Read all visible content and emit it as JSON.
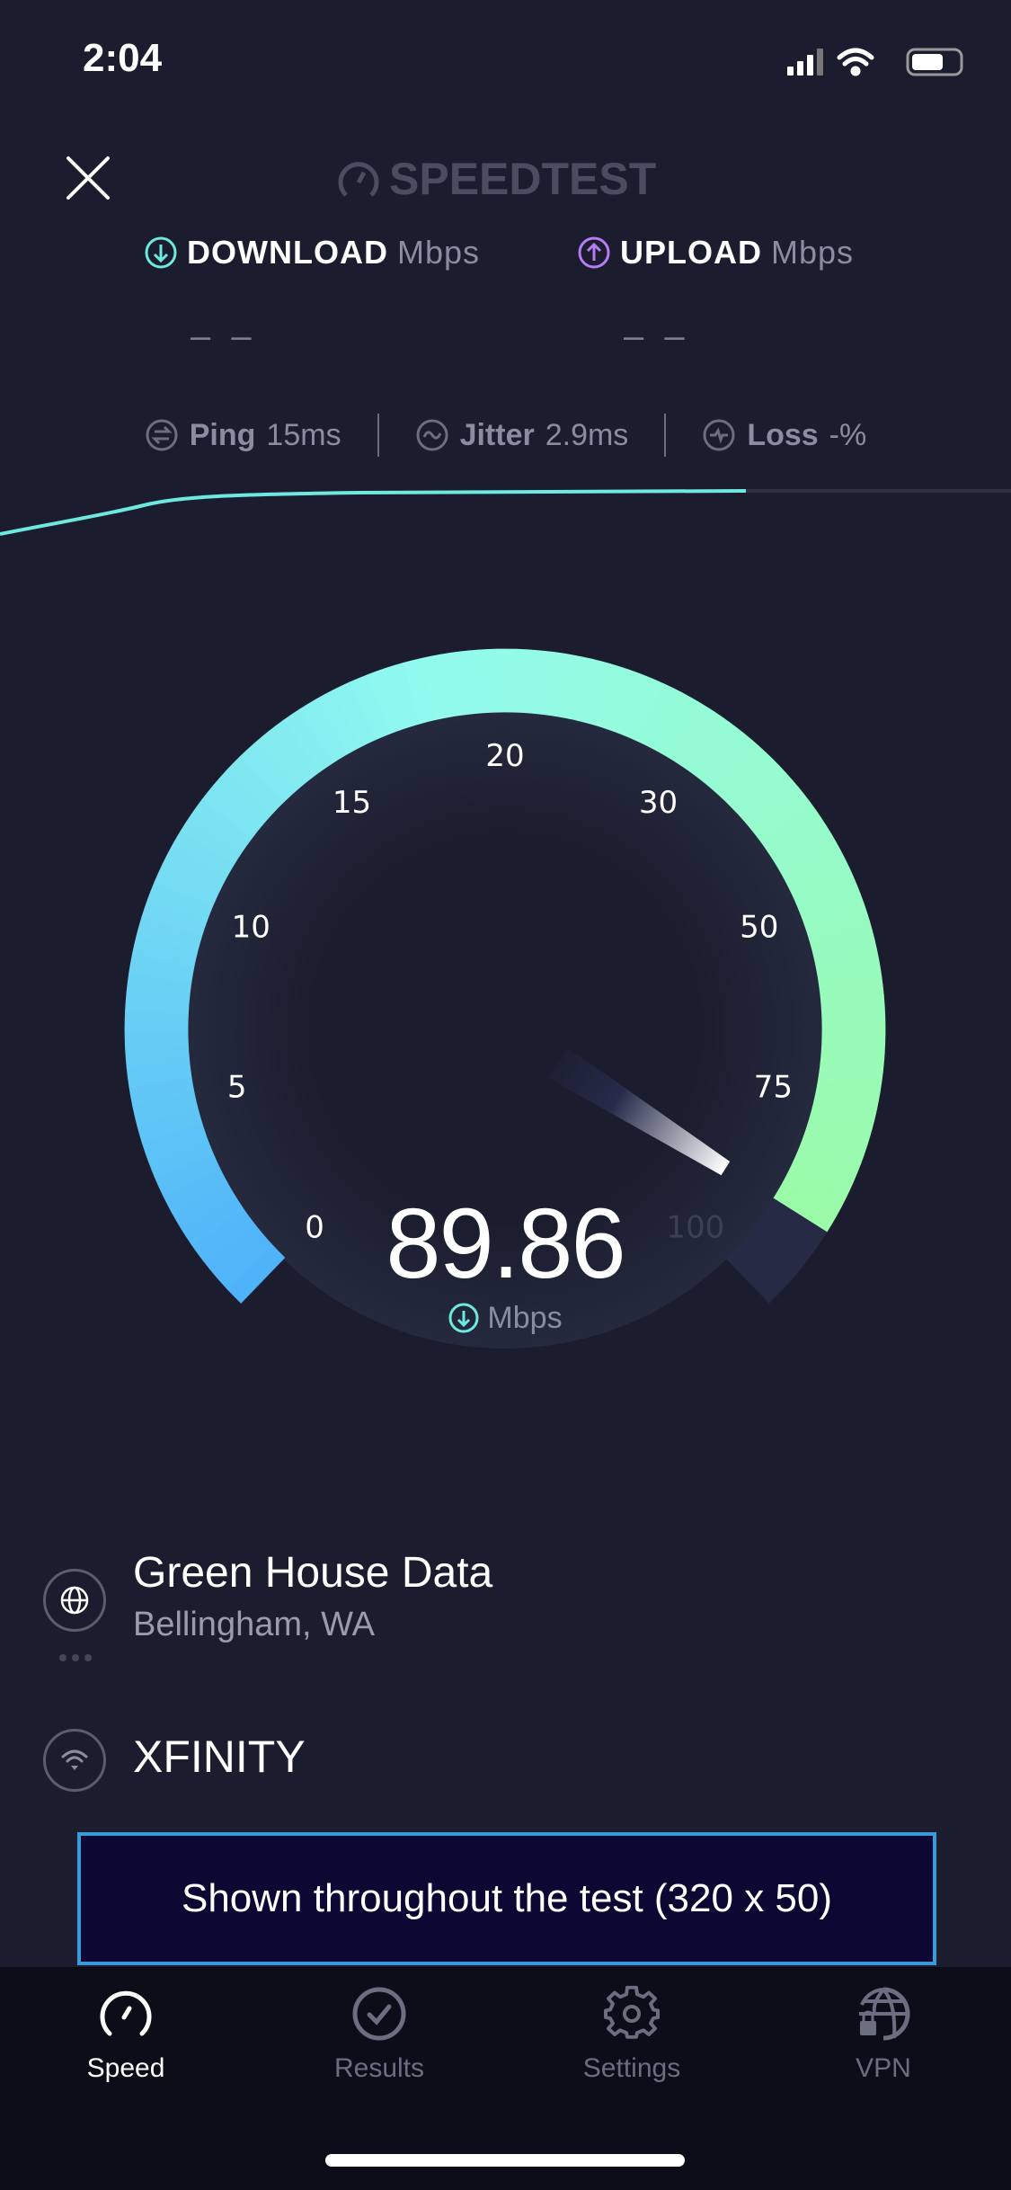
{
  "status_bar": {
    "time": "2:04"
  },
  "header": {
    "logo": "SPEEDTEST",
    "close_icon": "close-icon"
  },
  "results": {
    "download": {
      "label": "DOWNLOAD",
      "unit": "Mbps",
      "value": "– –"
    },
    "upload": {
      "label": "UPLOAD",
      "unit": "Mbps",
      "value": "– –"
    }
  },
  "metrics": {
    "ping": {
      "label": "Ping",
      "value": "15",
      "unit": "ms"
    },
    "jitter": {
      "label": "Jitter",
      "value": "2.9",
      "unit": "ms"
    },
    "loss": {
      "label": "Loss",
      "value": "-",
      "unit": "%"
    }
  },
  "gauge": {
    "ticks": [
      "0",
      "5",
      "10",
      "15",
      "20",
      "30",
      "50",
      "75",
      "100"
    ],
    "value": 89.86,
    "value_text": "89.86",
    "unit": "Mbps",
    "colors": {
      "start": "#4fb3f9",
      "mid": "#92fbee",
      "end": "#9bfba0",
      "track": "#262a45"
    }
  },
  "progress_line": {
    "fraction": 0.74,
    "color": "#6ee9e0"
  },
  "server": {
    "name": "Green House Data",
    "location": "Bellingham, WA"
  },
  "isp": {
    "name": "XFINITY"
  },
  "ad": {
    "text": "Shown throughout the test (320 x 50)"
  },
  "tabs": [
    {
      "label": "Speed",
      "icon": "speedometer-icon",
      "active": true
    },
    {
      "label": "Results",
      "icon": "check-circle-icon",
      "active": false
    },
    {
      "label": "Settings",
      "icon": "gear-icon",
      "active": false
    },
    {
      "label": "VPN",
      "icon": "globe-lock-icon",
      "active": false
    }
  ]
}
